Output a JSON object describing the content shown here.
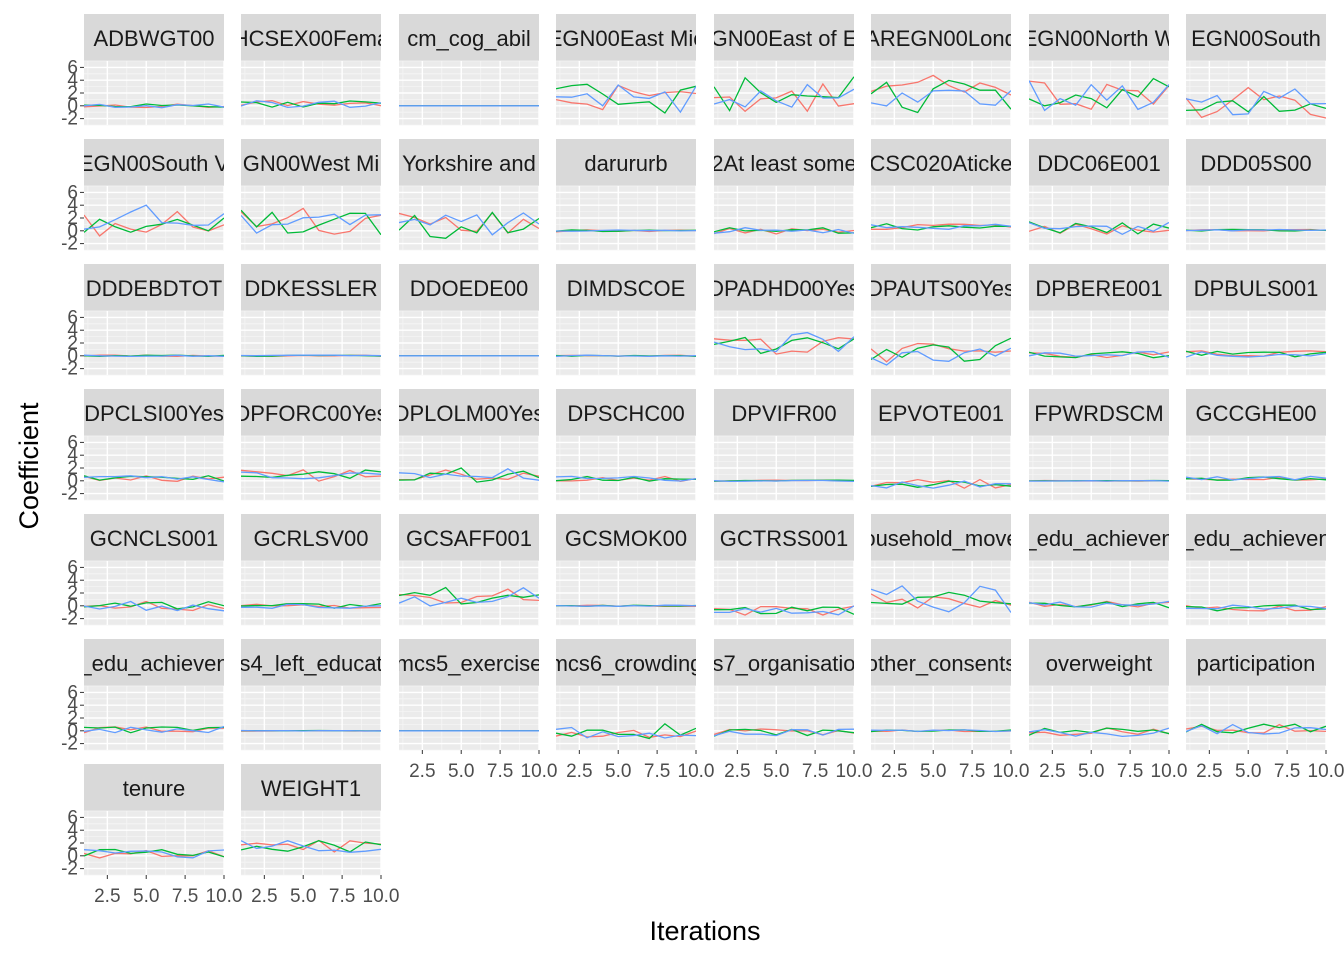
{
  "chart_data": {
    "type": "line",
    "facet_layout": "wrap",
    "xlabel": "Iterations",
    "ylabel": "Coefficient",
    "xlim": [
      1,
      10
    ],
    "ylim": [
      -3,
      7
    ],
    "x_ticks": [
      2.5,
      5.0,
      7.5,
      10.0
    ],
    "x_tick_labels": [
      "2.5",
      "5.0",
      "7.5",
      "10.0"
    ],
    "y_ticks": [
      -2,
      0,
      2,
      4,
      6
    ],
    "y_tick_labels": [
      "-2",
      "0",
      "2",
      "4",
      "6"
    ],
    "grid": true,
    "legend": "none",
    "series_colors": [
      "#F8766D",
      "#00BA38",
      "#619CFF"
    ],
    "facets": [
      {
        "label": "ADBWGT00",
        "amplitude": 0.3,
        "center": 0.0
      },
      {
        "label": "HCSEX00Fema",
        "amplitude": 0.6,
        "center": 0.3
      },
      {
        "label": "cm_cog_abil",
        "amplitude": 0.0,
        "center": 0.0
      },
      {
        "label": "EGN00East Mic",
        "amplitude": 2.2,
        "center": 1.2
      },
      {
        "label": "GN00East of E",
        "amplitude": 2.2,
        "center": 1.2
      },
      {
        "label": "AREGN00Lond",
        "amplitude": 2.6,
        "center": 1.8
      },
      {
        "label": "EGN00North W",
        "amplitude": 2.2,
        "center": 1.6
      },
      {
        "label": "EGN00South",
        "amplitude": 2.0,
        "center": 0.3
      },
      {
        "label": "EGN00South V",
        "amplitude": 2.0,
        "center": 1.3
      },
      {
        "label": "GN00West Mi",
        "amplitude": 2.0,
        "center": 1.3
      },
      {
        "label": "Yorkshire and",
        "amplitude": 2.0,
        "center": 1.0
      },
      {
        "label": "darururb",
        "amplitude": 0.15,
        "center": 0.0
      },
      {
        "label": "2At least some",
        "amplitude": 0.5,
        "center": 0.0
      },
      {
        "label": "CSC020Aticke",
        "amplitude": 0.5,
        "center": 0.6
      },
      {
        "label": "DDC06E001",
        "amplitude": 1.0,
        "center": 0.5
      },
      {
        "label": "DDD05S00",
        "amplitude": 0.15,
        "center": 0.1
      },
      {
        "label": "DDDEBDTOT",
        "amplitude": 0.1,
        "center": 0.0
      },
      {
        "label": "DDKESSLER",
        "amplitude": 0.1,
        "center": 0.0
      },
      {
        "label": "DDOEDE00",
        "amplitude": 0.0,
        "center": 0.0
      },
      {
        "label": "DIMDSCOE",
        "amplitude": 0.1,
        "center": 0.0
      },
      {
        "label": "DPADHD00Yes",
        "amplitude": 1.4,
        "center": 1.6
      },
      {
        "label": "DPAUTS00Yes",
        "amplitude": 1.5,
        "center": 0.5
      },
      {
        "label": "DPBERE001",
        "amplitude": 0.5,
        "center": 0.2
      },
      {
        "label": "DPBULS001",
        "amplitude": 0.5,
        "center": 0.3
      },
      {
        "label": "DPCLSI00Yes",
        "amplitude": 0.5,
        "center": 0.3
      },
      {
        "label": "DPFORC00Yes",
        "amplitude": 0.9,
        "center": 0.8
      },
      {
        "label": "DPLOLM00Yes",
        "amplitude": 0.9,
        "center": 1.0
      },
      {
        "label": "DPSCHC00",
        "amplitude": 0.4,
        "center": 0.3
      },
      {
        "label": "DPVIFR00",
        "amplitude": 0.1,
        "center": 0.0
      },
      {
        "label": "EPVOTE001",
        "amplitude": 0.7,
        "center": -0.5
      },
      {
        "label": "FPWRDSCM",
        "amplitude": 0.05,
        "center": 0.0
      },
      {
        "label": "GCCGHE00",
        "amplitude": 0.3,
        "center": 0.4
      },
      {
        "label": "GCNCLS001",
        "amplitude": 0.8,
        "center": 0.0
      },
      {
        "label": "GCRLSV00",
        "amplitude": 0.4,
        "center": 0.0
      },
      {
        "label": "GCSAFF001",
        "amplitude": 1.0,
        "center": 1.3
      },
      {
        "label": "GCSMOK00",
        "amplitude": 0.1,
        "center": 0.0
      },
      {
        "label": "GCTRSS001",
        "amplitude": 0.8,
        "center": -0.8
      },
      {
        "label": "ousehold_move",
        "amplitude": 1.8,
        "center": 0.8
      },
      {
        "label": "_edu_achieven",
        "amplitude": 0.5,
        "center": 0.2
      },
      {
        "label": "_edu_achieven",
        "amplitude": 0.5,
        "center": -0.4
      },
      {
        "label": "_edu_achieven",
        "amplitude": 0.5,
        "center": 0.2
      },
      {
        "label": "s4_left_educat",
        "amplitude": 0.05,
        "center": 0.0
      },
      {
        "label": "mcs5_exercise",
        "amplitude": 0.0,
        "center": 0.0
      },
      {
        "label": "mcs6_crowding",
        "amplitude": 0.9,
        "center": -0.3
      },
      {
        "label": "s7_organisatio",
        "amplitude": 0.6,
        "center": -0.3
      },
      {
        "label": "other_consents",
        "amplitude": 0.15,
        "center": 0.0
      },
      {
        "label": "overweight",
        "amplitude": 0.7,
        "center": -0.2
      },
      {
        "label": "participation",
        "amplitude": 0.8,
        "center": 0.3
      },
      {
        "label": "tenure",
        "amplitude": 0.7,
        "center": 0.3
      },
      {
        "label": "WEIGHT1",
        "amplitude": 0.9,
        "center": 1.5
      }
    ]
  }
}
